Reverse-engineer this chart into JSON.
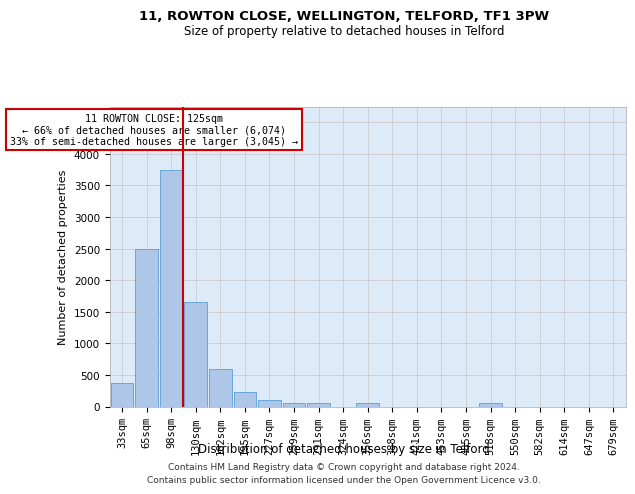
{
  "title": "11, ROWTON CLOSE, WELLINGTON, TELFORD, TF1 3PW",
  "subtitle": "Size of property relative to detached houses in Telford",
  "xlabel": "Distribution of detached houses by size in Telford",
  "ylabel": "Number of detached properties",
  "footer_line1": "Contains HM Land Registry data © Crown copyright and database right 2024.",
  "footer_line2": "Contains public sector information licensed under the Open Government Licence v3.0.",
  "bar_labels": [
    "33sqm",
    "65sqm",
    "98sqm",
    "130sqm",
    "162sqm",
    "195sqm",
    "227sqm",
    "259sqm",
    "291sqm",
    "324sqm",
    "356sqm",
    "388sqm",
    "421sqm",
    "453sqm",
    "485sqm",
    "518sqm",
    "550sqm",
    "582sqm",
    "614sqm",
    "647sqm",
    "679sqm"
  ],
  "bar_values": [
    375,
    2500,
    3750,
    1650,
    600,
    230,
    100,
    60,
    55,
    0,
    60,
    0,
    0,
    0,
    0,
    60,
    0,
    0,
    0,
    0,
    0
  ],
  "bar_color": "#aec6e8",
  "bar_edge_color": "#5a9fd4",
  "grid_color": "#cccccc",
  "bg_color": "#ddeaf8",
  "vline_x_index": 3,
  "vline_color": "#cc0000",
  "annotation_text": "  11 ROWTON CLOSE: 125sqm  \n← 66% of detached houses are smaller (6,074)\n33% of semi-detached houses are larger (3,045) →",
  "annotation_box_color": "#cc0000",
  "ylim": [
    0,
    4750
  ],
  "yticks": [
    0,
    500,
    1000,
    1500,
    2000,
    2500,
    3000,
    3500,
    4000,
    4500
  ],
  "title_fontsize": 9.5,
  "subtitle_fontsize": 8.5,
  "ylabel_fontsize": 8,
  "xlabel_fontsize": 8.5,
  "tick_fontsize": 7.5,
  "footer_fontsize": 6.5
}
